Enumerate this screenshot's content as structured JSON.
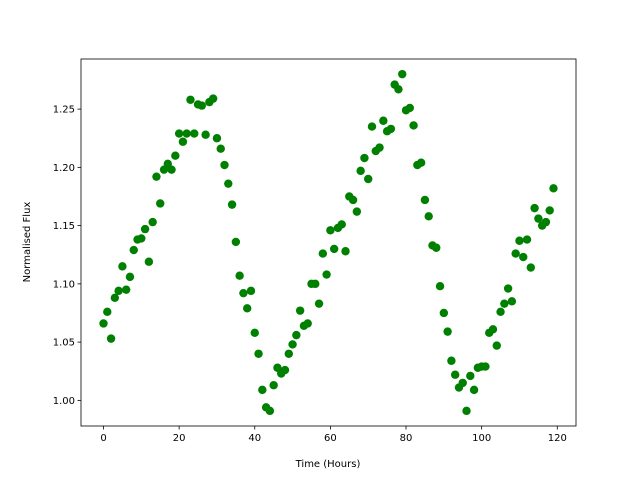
{
  "chart_data": {
    "type": "scatter",
    "xlabel": "Time (Hours)",
    "ylabel": "Normalised Flux",
    "color": "#008000",
    "x": [
      0,
      1,
      2,
      3,
      4,
      5,
      6,
      7,
      8,
      9,
      10,
      11,
      12,
      13,
      14,
      15,
      16,
      17,
      18,
      19,
      20,
      21,
      22,
      23,
      24,
      25,
      26,
      27,
      28,
      29,
      30,
      31,
      32,
      33,
      34,
      35,
      36,
      37,
      38,
      39,
      40,
      41,
      42,
      43,
      44,
      45,
      46,
      47,
      48,
      49,
      50,
      51,
      52,
      53,
      54,
      55,
      56,
      57,
      58,
      59,
      60,
      61,
      62,
      63,
      64,
      65,
      66,
      67,
      68,
      69,
      70,
      71,
      72,
      73,
      74,
      75,
      76,
      77,
      78,
      79,
      80,
      81,
      82,
      83,
      84,
      85,
      86,
      87,
      88,
      89,
      90,
      91,
      92,
      93,
      94,
      95,
      96,
      97,
      98,
      99,
      100,
      101,
      102,
      103,
      104,
      105,
      106,
      107,
      108,
      109,
      110,
      111,
      112,
      113,
      114,
      115,
      116,
      117,
      118,
      119
    ],
    "values": [
      1.066,
      1.076,
      1.053,
      1.088,
      1.094,
      1.115,
      1.095,
      1.106,
      1.129,
      1.138,
      1.139,
      1.147,
      1.119,
      1.153,
      1.192,
      1.169,
      1.198,
      1.203,
      1.198,
      1.21,
      1.229,
      1.222,
      1.229,
      1.258,
      1.229,
      1.254,
      1.253,
      1.228,
      1.256,
      1.259,
      1.225,
      1.216,
      1.202,
      1.186,
      1.168,
      1.136,
      1.107,
      1.092,
      1.079,
      1.094,
      1.058,
      1.04,
      1.009,
      0.994,
      0.991,
      1.013,
      1.028,
      1.023,
      1.026,
      1.04,
      1.048,
      1.056,
      1.077,
      1.064,
      1.066,
      1.1,
      1.1,
      1.083,
      1.126,
      1.108,
      1.146,
      1.13,
      1.148,
      1.151,
      1.128,
      1.175,
      1.172,
      1.162,
      1.197,
      1.208,
      1.19,
      1.235,
      1.214,
      1.217,
      1.24,
      1.231,
      1.233,
      1.271,
      1.267,
      1.28,
      1.249,
      1.251,
      1.236,
      1.202,
      1.204,
      1.172,
      1.158,
      1.133,
      1.131,
      1.098,
      1.075,
      1.059,
      1.034,
      1.022,
      1.011,
      1.015,
      0.991,
      1.021,
      1.009,
      1.028,
      1.029,
      1.029,
      1.058,
      1.061,
      1.047,
      1.076,
      1.083,
      1.096,
      1.085,
      1.126,
      1.137,
      1.123,
      1.138,
      1.114,
      1.165,
      1.156,
      1.15,
      1.153,
      1.163,
      1.182
    ],
    "xlim": [
      -5.95,
      124.95
    ],
    "xticks": [
      0,
      20,
      40,
      60,
      80,
      100,
      120
    ],
    "ylim": [
      0.978,
      1.293
    ],
    "yticks": [
      {
        "value": 1.0,
        "label": "1.00"
      },
      {
        "value": 1.05,
        "label": "1.05"
      },
      {
        "value": 1.1,
        "label": "1.10"
      },
      {
        "value": 1.15,
        "label": "1.15"
      },
      {
        "value": 1.2,
        "label": "1.20"
      },
      {
        "value": 1.25,
        "label": "1.25"
      }
    ]
  }
}
